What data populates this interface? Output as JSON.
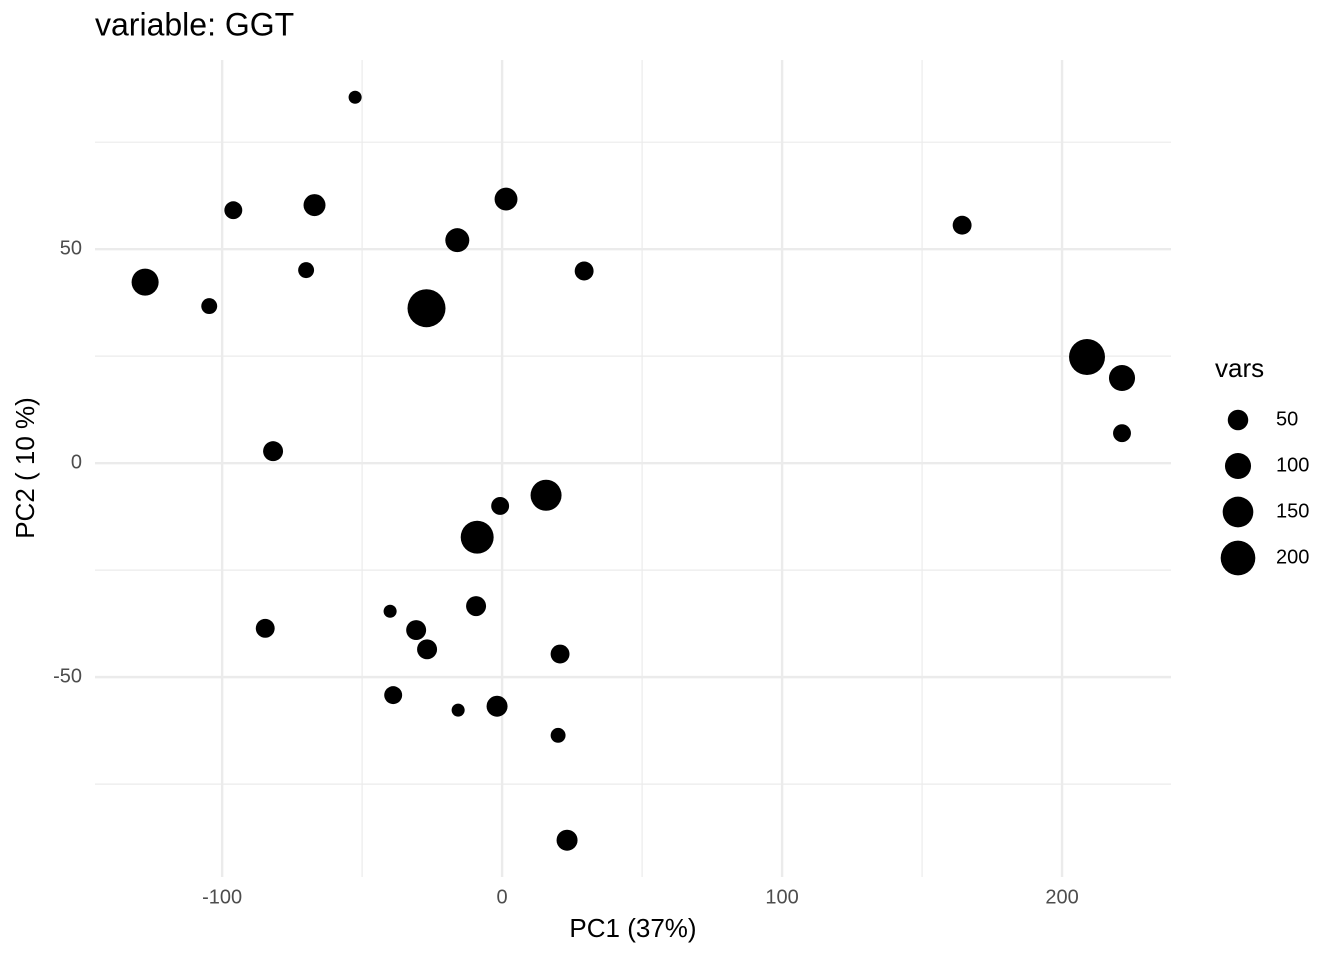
{
  "chart_data": {
    "type": "scatter",
    "title": "variable: GGT",
    "x_label": "PC1 (37%)",
    "y_label": "PC2 ( 10 %)",
    "x": [
      -52.5,
      -96,
      -67,
      1.4,
      -16,
      164.3,
      -127.5,
      -104.6,
      -70,
      -27,
      29.3,
      208.9,
      221.4,
      221.4,
      -81.8,
      15.7,
      -0.7,
      -8.9,
      -40,
      -9.3,
      -84.6,
      -30.7,
      -26.8,
      20.7,
      -38.9,
      -15.7,
      -1.8,
      20,
      23.2
    ],
    "y": [
      85.5,
      59.1,
      60.3,
      61.7,
      52.1,
      55.6,
      42.3,
      36.7,
      45.1,
      36.2,
      44.9,
      24.8,
      19.9,
      7.0,
      2.8,
      -7.5,
      -10.0,
      -17.3,
      -34.6,
      -33.4,
      -38.6,
      -39,
      -43.5,
      -44.6,
      -54.2,
      -57.7,
      -56.8,
      -63.6,
      -88.1
    ],
    "sizes": [
      2,
      31,
      62,
      70,
      80,
      38,
      110,
      18,
      18,
      247,
      38,
      218,
      100,
      31,
      46,
      154,
      31,
      178,
      2,
      46,
      38,
      46,
      46,
      38,
      31,
      2,
      54,
      12,
      54
    ],
    "color": "#000000",
    "xlim": [
      -145.4,
      238.9
    ],
    "ylim": [
      -96.7,
      94.2
    ],
    "xticks": [
      -100,
      0,
      100,
      200
    ],
    "yticks": [
      -50,
      0,
      50
    ],
    "grid": true,
    "minor_grid": true,
    "size_legend": {
      "title": "vars",
      "values": [
        50,
        100,
        150,
        200
      ]
    }
  }
}
